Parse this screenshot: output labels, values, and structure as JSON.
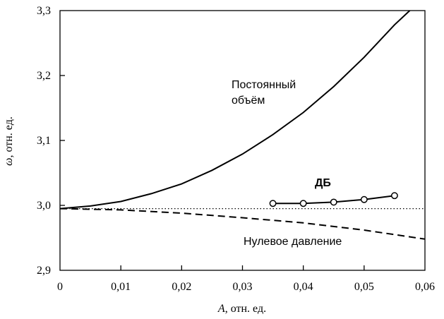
{
  "chart_data": {
    "type": "line",
    "xlabel_symbol": "A",
    "xlabel_rest": ", отн. ед.",
    "ylabel_symbol": "ω",
    "ylabel_rest": ", отн. ед.",
    "xlim": [
      0,
      0.06
    ],
    "ylim": [
      2.9,
      3.3
    ],
    "x_ticks": [
      0,
      0.01,
      0.02,
      0.03,
      0.04,
      0.05,
      0.06
    ],
    "x_tick_labels": [
      "0",
      "0,01",
      "0,02",
      "0,03",
      "0,04",
      "0,05",
      "0,06"
    ],
    "y_ticks": [
      2.9,
      3.0,
      3.1,
      3.2,
      3.3
    ],
    "y_tick_labels": [
      "2,9",
      "3,0",
      "3,1",
      "3,2",
      "3,3"
    ],
    "grid": false,
    "legend": "none",
    "reference_line": {
      "y": 2.995,
      "style": "dotted"
    },
    "series": [
      {
        "name_lines": [
          "Постоянный",
          "объём"
        ],
        "style": "solid",
        "x": [
          0,
          0.005,
          0.01,
          0.015,
          0.02,
          0.025,
          0.03,
          0.035,
          0.04,
          0.045,
          0.05,
          0.055,
          0.0575
        ],
        "y": [
          2.995,
          2.999,
          3.006,
          3.018,
          3.033,
          3.054,
          3.079,
          3.109,
          3.143,
          3.183,
          3.228,
          3.278,
          3.305
        ]
      },
      {
        "name": "Нулевое давление",
        "style": "dashed",
        "x": [
          0,
          0.01,
          0.02,
          0.03,
          0.04,
          0.05,
          0.06
        ],
        "y": [
          2.995,
          2.993,
          2.988,
          2.981,
          2.973,
          2.962,
          2.948
        ]
      },
      {
        "name": "ДБ",
        "style": "solid-markers",
        "x": [
          0.035,
          0.04,
          0.045,
          0.05,
          0.055
        ],
        "y": [
          3.003,
          3.003,
          3.005,
          3.009,
          3.015
        ]
      }
    ]
  }
}
